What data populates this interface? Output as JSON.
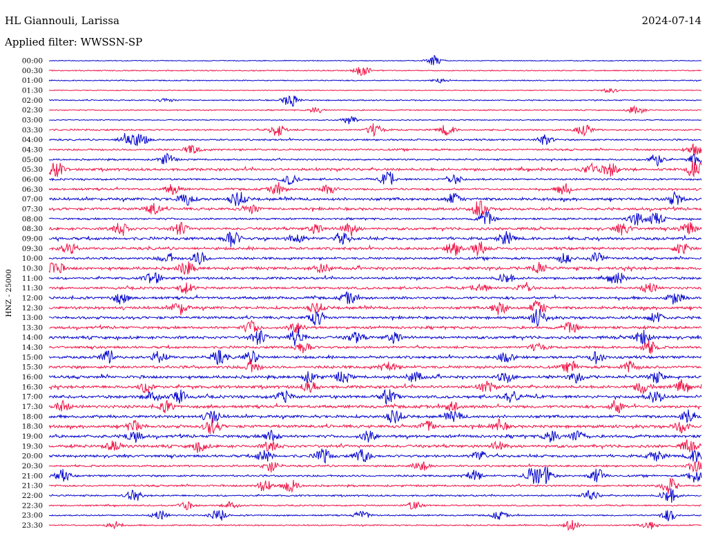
{
  "header": {
    "station": "HL Giannouli, Larissa",
    "date": "2024-07-14",
    "filter": "Applied filter: WWSSN-SP"
  },
  "chart_data": {
    "type": "line",
    "title": "HL Giannouli, Larissa",
    "subtitle": "Applied filter: WWSSN-SP",
    "ylabel": "HNZ - 25000",
    "xlabel": "",
    "grid": false,
    "colors": {
      "even_rows": "#0000cc",
      "odd_rows": "#ee1144"
    },
    "rows": [
      {
        "label": "00:00",
        "activity": 0.15,
        "events": [
          [
            0.59,
            1.0
          ]
        ]
      },
      {
        "label": "00:30",
        "activity": 0.25,
        "events": [
          [
            0.48,
            1.2
          ]
        ]
      },
      {
        "label": "01:00",
        "activity": 0.25,
        "events": [
          [
            0.6,
            0.5
          ]
        ]
      },
      {
        "label": "01:30",
        "activity": 0.15,
        "events": [
          [
            0.86,
            0.5
          ]
        ]
      },
      {
        "label": "02:00",
        "activity": 0.3,
        "events": [
          [
            0.37,
            1.4
          ],
          [
            0.18,
            0.4
          ]
        ]
      },
      {
        "label": "02:30",
        "activity": 0.3,
        "events": [
          [
            0.9,
            1.0
          ],
          [
            0.41,
            0.6
          ]
        ]
      },
      {
        "label": "03:00",
        "activity": 0.2,
        "events": [
          [
            0.46,
            0.8
          ]
        ]
      },
      {
        "label": "03:30",
        "activity": 0.5,
        "events": [
          [
            0.35,
            1.3
          ],
          [
            0.5,
            1.4
          ],
          [
            0.61,
            1.1
          ],
          [
            0.82,
            1.2
          ]
        ]
      },
      {
        "label": "04:00",
        "activity": 0.5,
        "events": [
          [
            0.12,
            1.5
          ],
          [
            0.14,
            1.2
          ],
          [
            0.76,
            1.0
          ]
        ]
      },
      {
        "label": "04:30",
        "activity": 0.6,
        "events": [
          [
            0.22,
            1.0
          ],
          [
            0.99,
            1.2
          ]
        ]
      },
      {
        "label": "05:00",
        "activity": 0.5,
        "events": [
          [
            0.18,
            1.2
          ],
          [
            0.93,
            1.3
          ],
          [
            0.99,
            1.2
          ]
        ]
      },
      {
        "label": "05:30",
        "activity": 0.9,
        "events": [
          [
            0.01,
            1.6
          ],
          [
            0.83,
            1.2
          ],
          [
            0.86,
            1.4
          ],
          [
            0.99,
            1.8
          ]
        ]
      },
      {
        "label": "06:00",
        "activity": 0.6,
        "events": [
          [
            0.52,
            1.6
          ],
          [
            0.37,
            1.0
          ],
          [
            0.62,
            1.1
          ]
        ]
      },
      {
        "label": "06:30",
        "activity": 0.7,
        "events": [
          [
            0.19,
            1.0
          ],
          [
            0.35,
            1.1
          ],
          [
            0.43,
            1.0
          ],
          [
            0.79,
            1.2
          ]
        ]
      },
      {
        "label": "07:00",
        "activity": 1.0,
        "events": [
          [
            0.21,
            1.3
          ],
          [
            0.29,
            1.5
          ],
          [
            0.62,
            1.1
          ],
          [
            0.96,
            1.2
          ]
        ]
      },
      {
        "label": "07:30",
        "activity": 0.9,
        "events": [
          [
            0.16,
            1.3
          ],
          [
            0.66,
            1.6
          ],
          [
            0.31,
            1.0
          ]
        ]
      },
      {
        "label": "08:00",
        "activity": 0.6,
        "events": [
          [
            0.67,
            1.5
          ],
          [
            0.9,
            1.4
          ],
          [
            0.93,
            1.3
          ]
        ]
      },
      {
        "label": "08:30",
        "activity": 0.9,
        "events": [
          [
            0.11,
            1.4
          ],
          [
            0.2,
            1.2
          ],
          [
            0.41,
            1.0
          ],
          [
            0.46,
            1.5
          ],
          [
            0.88,
            1.2
          ],
          [
            0.98,
            1.3
          ]
        ]
      },
      {
        "label": "09:00",
        "activity": 1.0,
        "events": [
          [
            0.28,
            1.8
          ],
          [
            0.38,
            1.1
          ],
          [
            0.45,
            1.1
          ],
          [
            0.7,
            1.3
          ]
        ]
      },
      {
        "label": "09:30",
        "activity": 0.9,
        "events": [
          [
            0.03,
            1.1
          ],
          [
            0.62,
            1.4
          ],
          [
            0.66,
            1.5
          ],
          [
            0.97,
            1.2
          ]
        ]
      },
      {
        "label": "10:00",
        "activity": 0.8,
        "events": [
          [
            0.23,
            1.3
          ],
          [
            0.18,
            1.0
          ],
          [
            0.79,
            1.0
          ],
          [
            0.84,
            1.3
          ]
        ]
      },
      {
        "label": "10:30",
        "activity": 1.0,
        "events": [
          [
            0.01,
            1.5
          ],
          [
            0.21,
            1.4
          ],
          [
            0.42,
            1.0
          ],
          [
            0.75,
            1.2
          ]
        ]
      },
      {
        "label": "11:00",
        "activity": 0.8,
        "events": [
          [
            0.16,
            1.4
          ],
          [
            0.7,
            1.1
          ],
          [
            0.87,
            1.3
          ]
        ]
      },
      {
        "label": "11:30",
        "activity": 0.8,
        "events": [
          [
            0.21,
            1.1
          ],
          [
            0.66,
            1.1
          ],
          [
            0.73,
            1.2
          ],
          [
            0.92,
            1.1
          ]
        ]
      },
      {
        "label": "12:00",
        "activity": 0.9,
        "events": [
          [
            0.11,
            1.1
          ],
          [
            0.46,
            1.1
          ],
          [
            0.96,
            1.3
          ]
        ]
      },
      {
        "label": "12:30",
        "activity": 1.0,
        "events": [
          [
            0.2,
            1.3
          ],
          [
            0.41,
            1.0
          ],
          [
            0.69,
            1.3
          ],
          [
            0.75,
            1.5
          ]
        ]
      },
      {
        "label": "13:00",
        "activity": 0.9,
        "events": [
          [
            0.41,
            1.5
          ],
          [
            0.75,
            1.8
          ],
          [
            0.93,
            1.2
          ]
        ]
      },
      {
        "label": "13:30",
        "activity": 0.9,
        "events": [
          [
            0.31,
            1.3
          ],
          [
            0.38,
            1.2
          ],
          [
            0.8,
            1.1
          ]
        ]
      },
      {
        "label": "14:00",
        "activity": 1.0,
        "events": [
          [
            0.32,
            1.4
          ],
          [
            0.38,
            1.8
          ],
          [
            0.47,
            1.1
          ],
          [
            0.53,
            1.1
          ],
          [
            0.91,
            1.5
          ]
        ]
      },
      {
        "label": "14:30",
        "activity": 0.8,
        "events": [
          [
            0.39,
            1.3
          ],
          [
            0.92,
            1.3
          ],
          [
            0.75,
            1.0
          ]
        ]
      },
      {
        "label": "15:00",
        "activity": 0.9,
        "events": [
          [
            0.09,
            1.2
          ],
          [
            0.17,
            1.1
          ],
          [
            0.26,
            1.3
          ],
          [
            0.31,
            1.2
          ],
          [
            0.7,
            1.1
          ],
          [
            0.84,
            1.2
          ]
        ]
      },
      {
        "label": "15:30",
        "activity": 1.0,
        "events": [
          [
            0.31,
            1.2
          ],
          [
            0.52,
            1.1
          ],
          [
            0.8,
            1.1
          ],
          [
            0.89,
            1.1
          ]
        ]
      },
      {
        "label": "16:00",
        "activity": 1.0,
        "events": [
          [
            0.4,
            1.1
          ],
          [
            0.45,
            1.1
          ],
          [
            0.56,
            1.1
          ],
          [
            0.7,
            1.1
          ],
          [
            0.81,
            1.1
          ],
          [
            0.93,
            1.1
          ]
        ]
      },
      {
        "label": "16:30",
        "activity": 1.0,
        "events": [
          [
            0.15,
            1.2
          ],
          [
            0.4,
            1.1
          ],
          [
            0.67,
            1.1
          ],
          [
            0.91,
            1.2
          ],
          [
            0.97,
            1.1
          ]
        ]
      },
      {
        "label": "17:00",
        "activity": 1.0,
        "events": [
          [
            0.16,
            1.2
          ],
          [
            0.2,
            1.3
          ],
          [
            0.36,
            1.1
          ],
          [
            0.52,
            1.4
          ],
          [
            0.71,
            1.2
          ],
          [
            0.93,
            1.2
          ]
        ]
      },
      {
        "label": "17:30",
        "activity": 1.0,
        "events": [
          [
            0.02,
            1.1
          ],
          [
            0.18,
            1.1
          ],
          [
            0.62,
            1.1
          ],
          [
            0.87,
            1.3
          ]
        ]
      },
      {
        "label": "18:00",
        "activity": 1.0,
        "events": [
          [
            0.25,
            1.4
          ],
          [
            0.53,
            1.3
          ],
          [
            0.62,
            1.2
          ],
          [
            0.98,
            1.3
          ]
        ]
      },
      {
        "label": "18:30",
        "activity": 1.0,
        "events": [
          [
            0.13,
            1.2
          ],
          [
            0.25,
            1.7
          ],
          [
            0.58,
            1.1
          ],
          [
            0.69,
            1.2
          ],
          [
            0.97,
            1.2
          ]
        ]
      },
      {
        "label": "19:00",
        "activity": 1.0,
        "events": [
          [
            0.13,
            1.2
          ],
          [
            0.34,
            1.1
          ],
          [
            0.49,
            1.1
          ],
          [
            0.77,
            1.2
          ],
          [
            0.81,
            1.2
          ]
        ]
      },
      {
        "label": "19:30",
        "activity": 1.0,
        "events": [
          [
            0.1,
            1.1
          ],
          [
            0.23,
            1.1
          ],
          [
            0.34,
            1.1
          ],
          [
            0.69,
            1.1
          ],
          [
            0.98,
            1.2
          ]
        ]
      },
      {
        "label": "20:00",
        "activity": 0.9,
        "events": [
          [
            0.33,
            1.2
          ],
          [
            0.42,
            1.4
          ],
          [
            0.48,
            1.5
          ],
          [
            0.66,
            1.1
          ],
          [
            0.93,
            1.1
          ],
          [
            0.99,
            1.2
          ]
        ]
      },
      {
        "label": "20:30",
        "activity": 0.6,
        "events": [
          [
            0.34,
            1.2
          ],
          [
            0.57,
            1.1
          ],
          [
            0.99,
            1.2
          ]
        ]
      },
      {
        "label": "21:00",
        "activity": 0.6,
        "events": [
          [
            0.02,
            1.2
          ],
          [
            0.65,
            1.2
          ],
          [
            0.74,
            1.6
          ],
          [
            0.76,
            1.9
          ],
          [
            0.84,
            1.5
          ],
          [
            0.99,
            1.4
          ]
        ]
      },
      {
        "label": "21:30",
        "activity": 0.6,
        "events": [
          [
            0.33,
            1.2
          ],
          [
            0.37,
            1.3
          ],
          [
            0.95,
            1.7
          ]
        ]
      },
      {
        "label": "22:00",
        "activity": 0.5,
        "events": [
          [
            0.13,
            1.1
          ],
          [
            0.83,
            1.1
          ],
          [
            0.95,
            1.6
          ]
        ]
      },
      {
        "label": "22:30",
        "activity": 0.4,
        "events": [
          [
            0.21,
            0.8
          ],
          [
            0.28,
            0.8
          ],
          [
            0.56,
            0.9
          ]
        ]
      },
      {
        "label": "23:00",
        "activity": 0.4,
        "events": [
          [
            0.17,
            1.0
          ],
          [
            0.26,
            1.3
          ],
          [
            0.48,
            0.9
          ],
          [
            0.69,
            0.8
          ],
          [
            0.95,
            1.1
          ]
        ]
      },
      {
        "label": "23:30",
        "activity": 0.35,
        "events": [
          [
            0.1,
            0.8
          ],
          [
            0.8,
            1.2
          ],
          [
            0.92,
            0.9
          ]
        ]
      }
    ]
  }
}
